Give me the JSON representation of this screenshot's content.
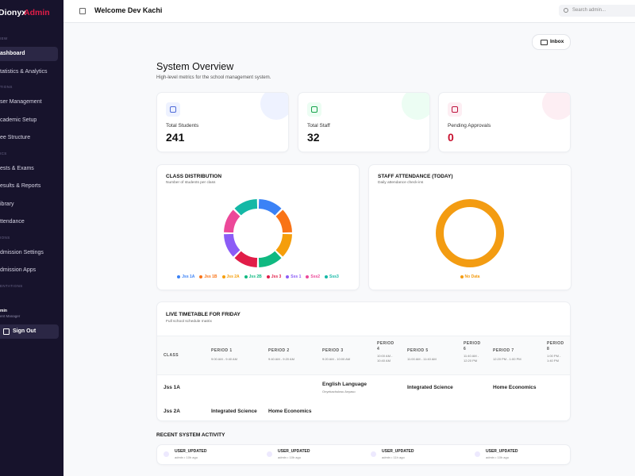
{
  "sidebar": {
    "brand": "Dionyx",
    "brand_accent": "Admin",
    "sections": [
      {
        "label": "IEW",
        "items": [
          "ashboard",
          "tatistics & Analytics"
        ]
      },
      {
        "label": "TIONS",
        "items": [
          "ser Management",
          "cademic Setup",
          "ee Structure"
        ]
      },
      {
        "label": "ICS",
        "items": [
          "ests & Exams",
          "esults & Reports",
          "ibrary",
          "ttendance"
        ]
      },
      {
        "label": "IONS",
        "items": [
          "dmission Settings",
          "dmission Apps"
        ]
      },
      {
        "label": "ENTATIONS",
        "items": []
      }
    ],
    "user": {
      "name": "min",
      "role": "ent Manager"
    },
    "sign_out": "Sign Out"
  },
  "header": {
    "title": "Welcome Dev Kachi",
    "search_placeholder": "Search admin..."
  },
  "inbox": "Inbox",
  "overview": {
    "title": "System Overview",
    "subtitle": "High-level metrics for the school management system."
  },
  "stats": [
    {
      "label": "Total Students",
      "value": 241
    },
    {
      "label": "Total Staff",
      "value": 32
    },
    {
      "label": "Pending Approvals",
      "value": 0
    }
  ],
  "charts": [
    {
      "type": "donut",
      "title": "CLASS DISTRIBUTION",
      "subtitle": "Number of students per class",
      "categories": [
        "Jss 1A",
        "Jss 1B",
        "Jss 2A",
        "Jss 2B",
        "Jss 3",
        "Sss 1",
        "Sss2",
        "Sss3"
      ],
      "colors": [
        "#3b82f6",
        "#f97316",
        "#f59e0b",
        "#10b981",
        "#e11d48",
        "#8b5cf6",
        "#ec4899",
        "#14b8a6"
      ],
      "values": [
        30,
        30,
        30,
        30,
        30,
        30,
        30,
        30
      ]
    },
    {
      "type": "donut",
      "title": "STAFF ATTENDANCE (TODAY)",
      "subtitle": "Daily attendance check-ins",
      "categories": [
        "No Data"
      ],
      "colors": [
        "#f39c12"
      ],
      "values": [
        100
      ]
    }
  ],
  "timetable": {
    "title": "LIVE TIMETABLE FOR FRIDAY",
    "subtitle": "Full school schedule matrix",
    "class_header": "CLASS",
    "columns": [
      {
        "label": "PERIOD 1",
        "time": "9:00 AM - 9:40 AM"
      },
      {
        "label": "PERIOD 2",
        "time": "9:40 AM - 9:20 AM"
      },
      {
        "label": "PERIOD 3",
        "time": "9:20 AM - 10:00 AM"
      },
      {
        "label": "PERIOD 4",
        "time": "10:00 AM - 10:40 AM"
      },
      {
        "label": "PERIOD 5",
        "time": "11:00 AM - 11:40 AM"
      },
      {
        "label": "PERIOD 6",
        "time": "11:40 AM - 12:20 PM"
      },
      {
        "label": "PERIOD 7",
        "time": "12:20 PM - 1:00 PM"
      },
      {
        "label": "PERIOD 8",
        "time": "1:00 PM - 1:40 PM"
      }
    ],
    "rows": [
      {
        "class": "Jss 1A",
        "cells": [
          {
            "period": 2,
            "subject": "English Language",
            "teacher": "Onyekachukwu Anyaso"
          },
          {
            "period": 4,
            "subject": "Integrated Science"
          },
          {
            "period": 6,
            "subject": "Home Economics"
          }
        ]
      },
      {
        "class": "Jss 2A",
        "cells": [
          {
            "period": 0,
            "subject": "Integrated Science"
          },
          {
            "period": 1,
            "subject": "Home Economics"
          }
        ]
      }
    ]
  },
  "activity": {
    "title": "RECENT SYSTEM ACTIVITY",
    "items": [
      {
        "action": "USER_UPDATED",
        "meta": "admin • 10h ago"
      },
      {
        "action": "USER_UPDATED",
        "meta": "admin • 10h ago"
      },
      {
        "action": "USER_UPDATED",
        "meta": "admin • 11h ago"
      },
      {
        "action": "USER_UPDATED",
        "meta": "admin • 10h ago"
      }
    ]
  }
}
